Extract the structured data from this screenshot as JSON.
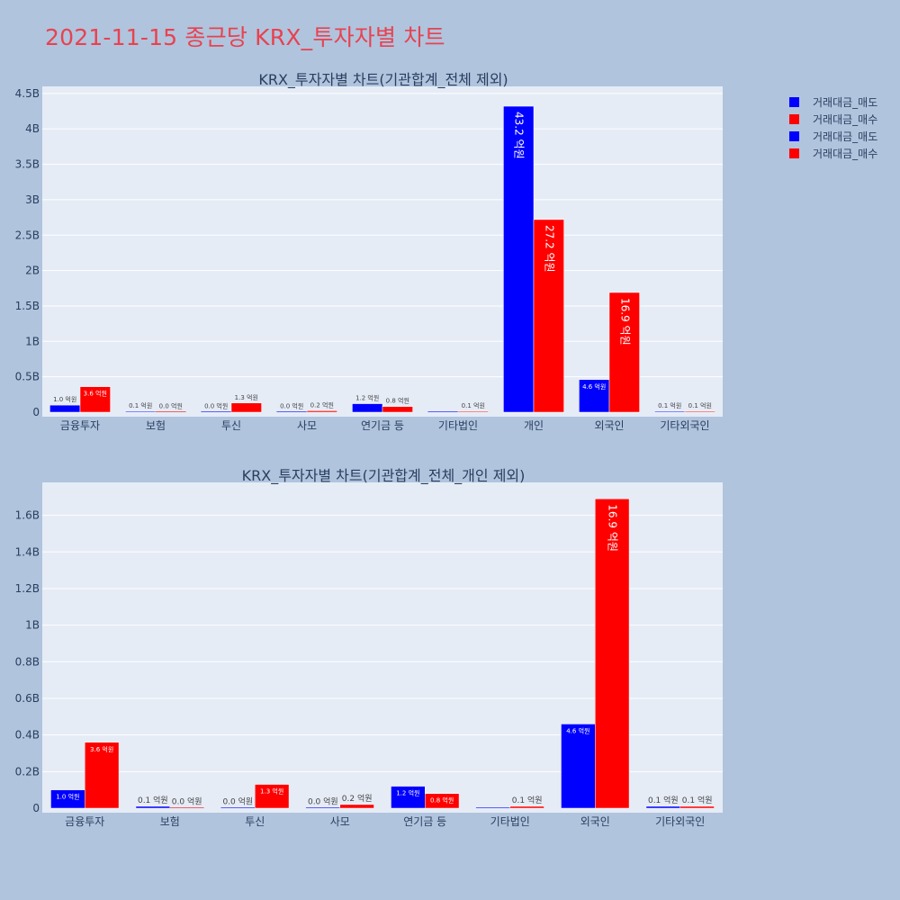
{
  "page_title": "2021-11-15 종근당 KRX_투자자별 차트",
  "colors": {
    "sell": "#0000ff",
    "buy": "#ff0000",
    "background": "#b0c4de",
    "plot_bg": "#e5ecf6",
    "title": "#e8424f"
  },
  "legend": [
    "거래대금_매도",
    "거래대금_매수",
    "거래대금_매도",
    "거래대금_매수"
  ],
  "chart_data": [
    {
      "type": "bar",
      "title": "KRX_투자자별 차트(기관합계_전체 제외)",
      "categories": [
        "금융투자",
        "보험",
        "투신",
        "사모",
        "연기금 등",
        "기타법인",
        "개인",
        "외국인",
        "기타외국인"
      ],
      "ylim": [
        0,
        4.6
      ],
      "yticks": [
        0,
        0.5,
        1,
        1.5,
        2,
        2.5,
        3,
        3.5,
        4,
        4.5
      ],
      "ytick_labels": [
        "0",
        "0.5B",
        "1B",
        "1.5B",
        "2B",
        "2.5B",
        "3B",
        "3.5B",
        "4B",
        "4.5B"
      ],
      "grid": true,
      "series": [
        {
          "name": "거래대금_매도",
          "color": "#0000ff",
          "values": [
            0.1,
            0.01,
            0.0,
            0.0,
            0.12,
            0.0,
            4.32,
            0.46,
            0.01
          ],
          "labels": [
            "1.0 억원",
            "0.1 억원",
            "0.0 억원",
            "0.0 억원",
            "1.2 억원",
            "",
            "43.2 억원",
            "4.6 억원",
            "0.1 억원"
          ]
        },
        {
          "name": "거래대금_매수",
          "color": "#ff0000",
          "values": [
            0.36,
            0.0,
            0.13,
            0.02,
            0.08,
            0.01,
            2.72,
            1.69,
            0.01
          ],
          "labels": [
            "3.6 억원",
            "0.0 억원",
            "1.3 억원",
            "0.2 억원",
            "0.8 억원",
            "0.1 억원",
            "27.2 억원",
            "16.9 억원",
            "0.1 억원"
          ]
        }
      ]
    },
    {
      "type": "bar",
      "title": "KRX_투자자별 차트(기관합계_전체_개인 제외)",
      "categories": [
        "금융투자",
        "보험",
        "투신",
        "사모",
        "연기금 등",
        "기타법인",
        "외국인",
        "기타외국인"
      ],
      "ylim": [
        0,
        1.78
      ],
      "yticks": [
        0,
        0.2,
        0.4,
        0.6,
        0.8,
        1,
        1.2,
        1.4,
        1.6
      ],
      "ytick_labels": [
        "0",
        "0.2B",
        "0.4B",
        "0.6B",
        "0.8B",
        "1B",
        "1.2B",
        "1.4B",
        "1.6B"
      ],
      "grid": true,
      "series": [
        {
          "name": "거래대금_매도",
          "color": "#0000ff",
          "values": [
            0.1,
            0.01,
            0.0,
            0.0,
            0.12,
            0.0,
            0.46,
            0.01
          ],
          "labels": [
            "1.0 억원",
            "0.1 억원",
            "0.0 억원",
            "0.0 억원",
            "1.2 억원",
            "",
            "4.6 억원",
            "0.1 억원"
          ]
        },
        {
          "name": "거래대금_매수",
          "color": "#ff0000",
          "values": [
            0.36,
            0.0,
            0.13,
            0.02,
            0.08,
            0.01,
            1.69,
            0.01
          ],
          "labels": [
            "3.6 억원",
            "0.0 억원",
            "1.3 억원",
            "0.2 억원",
            "0.8 억원",
            "0.1 억원",
            "16.9 억원",
            "0.1 억원"
          ]
        }
      ]
    }
  ]
}
